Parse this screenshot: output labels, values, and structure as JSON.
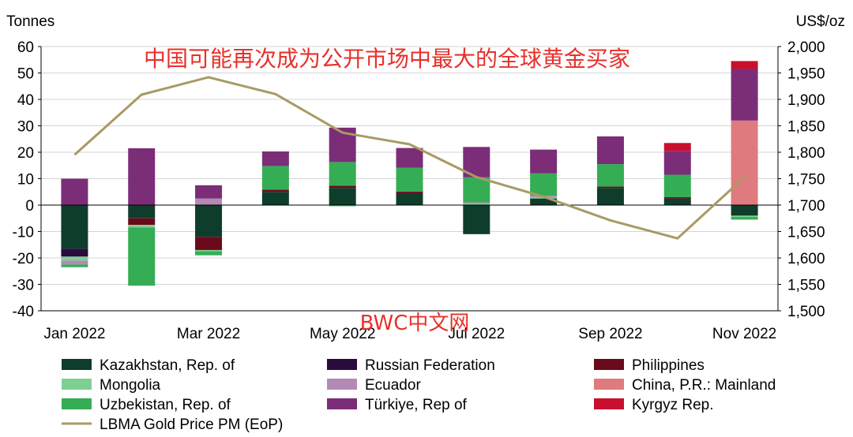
{
  "chart_data": {
    "type": "bar",
    "subtype": "stacked bar with line on secondary axis",
    "overlay_title": "中国可能再次成为公开市场中最大的全球黄金买家",
    "watermark": "BWC中文网",
    "left_axis_label": "Tonnes",
    "right_axis_label": "US$/oz",
    "ylim": [
      -40,
      60
    ],
    "y_ticks": [
      60,
      50,
      40,
      30,
      20,
      10,
      0,
      -10,
      -20,
      -30,
      -40
    ],
    "y2lim": [
      1500,
      2000
    ],
    "y2_ticks": [
      "2,000",
      "1,950",
      "1,900",
      "1,850",
      "1,800",
      "1,750",
      "1,700",
      "1,650",
      "1,600",
      "1,550",
      "1,500"
    ],
    "y2_tick_values": [
      2000,
      1950,
      1900,
      1850,
      1800,
      1750,
      1700,
      1650,
      1600,
      1550,
      1500
    ],
    "categories": [
      "Jan 2022",
      "Feb 2022",
      "Mar 2022",
      "Apr 2022",
      "May 2022",
      "Jun 2022",
      "Jul 2022",
      "Aug 2022",
      "Sep 2022",
      "Oct 2022",
      "Nov 2022"
    ],
    "x_tick_labels": [
      "Jan 2022",
      "",
      "Mar 2022",
      "",
      "May 2022",
      "",
      "Jul 2022",
      "",
      "Sep 2022",
      "",
      "Nov 2022"
    ],
    "grid": true,
    "legend_position": "bottom",
    "series": [
      {
        "name": "Kazakhstan, Rep. of",
        "color": "#0f3d2b",
        "values": [
          -16.5,
          -5,
          -12,
          5,
          6.5,
          4.5,
          -11,
          2.5,
          6.5,
          2.5,
          -4
        ]
      },
      {
        "name": "Russian Federation",
        "color": "#2a0b3d",
        "values": [
          -3,
          0,
          0,
          0,
          0,
          0,
          0,
          0,
          0,
          0,
          0
        ]
      },
      {
        "name": "Philippines",
        "color": "#6b0a1a",
        "values": [
          0,
          -2.5,
          -5,
          0.8,
          0.8,
          0.6,
          0,
          0,
          0.5,
          0.5,
          0
        ]
      },
      {
        "name": "Mongolia",
        "color": "#7fcf94",
        "values": [
          -1.5,
          -1,
          -0.5,
          0,
          -0.5,
          0,
          0.5,
          0.5,
          0,
          0,
          -0.5
        ]
      },
      {
        "name": "Ecuador",
        "color": "#b38ab5",
        "values": [
          -1.5,
          0,
          2.5,
          0,
          0,
          0,
          0.5,
          0.5,
          0,
          0,
          0
        ]
      },
      {
        "name": "China, P.R.: Mainland",
        "color": "#df7b7e",
        "values": [
          0,
          0,
          0,
          0,
          0,
          0,
          0,
          0,
          0,
          0,
          32
        ]
      },
      {
        "name": "Uzbekistan, Rep. of",
        "color": "#35ad55",
        "values": [
          -1,
          -22,
          -1.5,
          9,
          9,
          9,
          9.5,
          8.5,
          8.5,
          8.5,
          -1
        ]
      },
      {
        "name": "Türkiye, Rep of",
        "color": "#7b2d78",
        "values": [
          10,
          21.5,
          5,
          5.5,
          13,
          7.5,
          11.5,
          9,
          10.5,
          9,
          19.5
        ]
      },
      {
        "name": "Kyrgyz Rep.",
        "color": "#c8102e",
        "values": [
          0,
          0,
          0,
          0,
          0,
          0,
          0,
          0,
          0,
          3,
          3
        ]
      }
    ],
    "line_series": {
      "name": "LBMA Gold Price PM (EoP)",
      "color": "#a89a63",
      "axis": "right",
      "values": [
        1795,
        1909,
        1942,
        1910,
        1837,
        1815,
        1753,
        1716,
        1671,
        1637,
        1753
      ]
    },
    "legend_order": [
      "Kazakhstan, Rep. of",
      "Russian Federation",
      "Philippines",
      "Mongolia",
      "Ecuador",
      "China, P.R.: Mainland",
      "Uzbekistan, Rep. of",
      "Türkiye, Rep of",
      "Kyrgyz Rep.",
      "LBMA Gold Price PM (EoP)"
    ]
  }
}
